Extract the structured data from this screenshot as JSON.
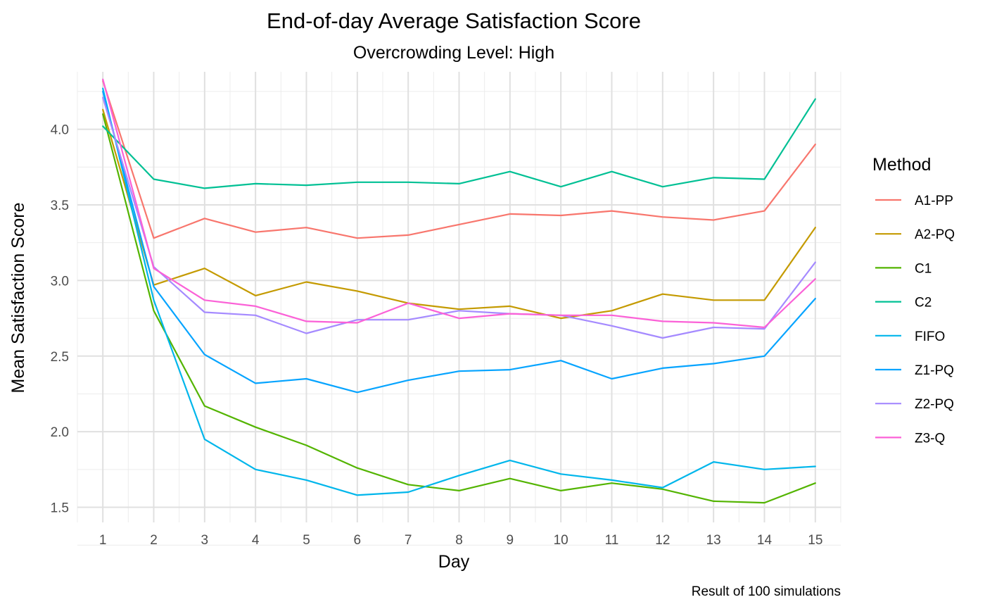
{
  "chart_data": {
    "type": "line",
    "title": "End-of-day Average Satisfaction Score",
    "subtitle": "Overcrowding Level: High",
    "xlabel": "Day",
    "ylabel": "Mean Satisfaction Score",
    "caption": "Result of 100 simulations",
    "x": [
      1,
      2,
      3,
      4,
      5,
      6,
      7,
      8,
      9,
      10,
      11,
      12,
      13,
      14,
      15
    ],
    "x_ticks": [
      "1",
      "2",
      "3",
      "4",
      "5",
      "6",
      "7",
      "8",
      "9",
      "10",
      "11",
      "12",
      "13",
      "14",
      "15"
    ],
    "y_ticks": [
      "1.5",
      "2.0",
      "2.5",
      "3.0",
      "3.5",
      "4.0"
    ],
    "xlim": [
      0.5,
      15.5
    ],
    "ylim": [
      1.4,
      4.38
    ],
    "grid": true,
    "legend_title": "Method",
    "legend_position": "right",
    "series": [
      {
        "name": "A1-PP",
        "color": "#F8766D",
        "values": [
          4.32,
          3.28,
          3.41,
          3.32,
          3.35,
          3.28,
          3.3,
          3.37,
          3.44,
          3.43,
          3.46,
          3.42,
          3.4,
          3.46,
          3.9
        ]
      },
      {
        "name": "A2-PQ",
        "color": "#C49A00",
        "values": [
          4.13,
          2.97,
          3.08,
          2.9,
          2.99,
          2.93,
          2.85,
          2.81,
          2.83,
          2.75,
          2.8,
          2.91,
          2.87,
          2.87,
          3.35
        ]
      },
      {
        "name": "C1",
        "color": "#53B400",
        "values": [
          4.1,
          2.8,
          2.17,
          2.03,
          1.91,
          1.76,
          1.65,
          1.61,
          1.69,
          1.61,
          1.66,
          1.62,
          1.54,
          1.53,
          1.66
        ]
      },
      {
        "name": "C2",
        "color": "#00C094",
        "values": [
          4.02,
          3.67,
          3.61,
          3.64,
          3.63,
          3.65,
          3.65,
          3.64,
          3.72,
          3.62,
          3.72,
          3.62,
          3.68,
          3.67,
          4.2
        ]
      },
      {
        "name": "FIFO",
        "color": "#00B6EB",
        "values": [
          4.27,
          2.87,
          1.95,
          1.75,
          1.68,
          1.58,
          1.6,
          1.71,
          1.81,
          1.72,
          1.68,
          1.63,
          1.8,
          1.75,
          1.77
        ]
      },
      {
        "name": "Z1-PQ",
        "color": "#06A4FF",
        "values": [
          4.25,
          2.96,
          2.51,
          2.32,
          2.35,
          2.26,
          2.34,
          2.4,
          2.41,
          2.47,
          2.35,
          2.42,
          2.45,
          2.5,
          2.88
        ]
      },
      {
        "name": "Z2-PQ",
        "color": "#A58AFF",
        "values": [
          4.21,
          3.09,
          2.79,
          2.77,
          2.65,
          2.74,
          2.74,
          2.8,
          2.78,
          2.77,
          2.7,
          2.62,
          2.69,
          2.68,
          3.12
        ]
      },
      {
        "name": "Z3-Q",
        "color": "#FB61D7",
        "values": [
          4.33,
          3.08,
          2.87,
          2.83,
          2.73,
          2.72,
          2.85,
          2.75,
          2.78,
          2.77,
          2.77,
          2.73,
          2.72,
          2.69,
          3.01
        ]
      }
    ]
  }
}
